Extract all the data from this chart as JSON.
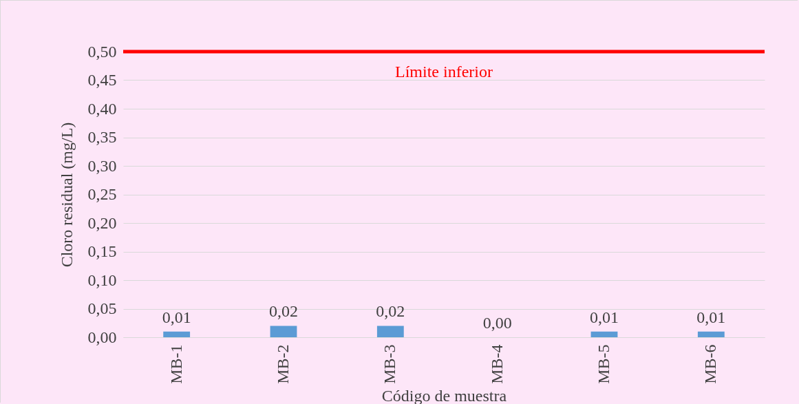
{
  "chart_data": {
    "type": "bar",
    "xlabel": "Código de muestra",
    "ylabel": "Cloro residual (mg/L)",
    "categories": [
      "MB-1",
      "MB-2",
      "MB-3",
      "MB-4",
      "MB-5",
      "MB-6"
    ],
    "values": [
      0.01,
      0.02,
      0.02,
      0.0,
      0.01,
      0.01
    ],
    "value_labels": [
      "0,01",
      "0,02",
      "0,02",
      "0,00",
      "0,01",
      "0,01"
    ],
    "color": "#5b9bd5",
    "ylim": [
      0,
      0.5
    ],
    "yticks": [
      {
        "value": 0,
        "label": "0,00"
      },
      {
        "value": 0.05,
        "label": "0,05"
      },
      {
        "value": 0.1,
        "label": "0,10"
      },
      {
        "value": 0.15,
        "label": "0,15"
      },
      {
        "value": 0.2,
        "label": "0,20"
      },
      {
        "value": 0.25,
        "label": "0,25"
      },
      {
        "value": 0.3,
        "label": "0,30"
      },
      {
        "value": 0.35,
        "label": "0,35"
      },
      {
        "value": 0.4,
        "label": "0,40"
      },
      {
        "value": 0.45,
        "label": "0,45"
      },
      {
        "value": 0.5,
        "label": "0,50"
      }
    ],
    "grid": "y",
    "ref_lines": [
      {
        "axis": "y",
        "value": 0.5,
        "label": "Límite inferior",
        "color": "#ff0000"
      }
    ]
  }
}
